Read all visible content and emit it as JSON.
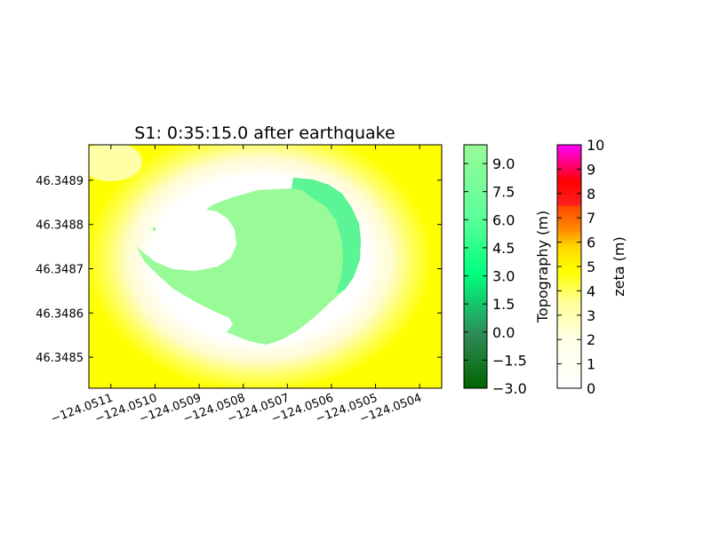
{
  "chart_data": [
    {
      "type": "heatmap",
      "title": "S1: 0:35:15.0 after earthquake",
      "xlabel": "",
      "ylabel": "",
      "xlim": [
        -124.05115,
        -124.05035
      ],
      "ylim": [
        46.34843,
        46.34898
      ],
      "x_ticks": [
        -124.0511,
        -124.051,
        -124.0509,
        -124.0508,
        -124.0507,
        -124.0506,
        -124.0505,
        -124.0504
      ],
      "x_tick_labels": [
        "−124.0511",
        "−124.0510",
        "−124.0509",
        "−124.0508",
        "−124.0507",
        "−124.0506",
        "−124.0505",
        "−124.0504"
      ],
      "y_ticks": [
        46.3485,
        46.3486,
        46.3487,
        46.3488,
        46.3489
      ],
      "y_tick_labels": [
        "46.3485",
        "46.3486",
        "46.3487",
        "46.3488",
        "46.3489"
      ],
      "grid": false,
      "fields": [
        {
          "name": "zeta (m)",
          "description": "water surface elevation, yellow (~4.5) outside ring fading to white (0) near island"
        },
        {
          "name": "Topography (m)",
          "description": "dry land island shown in light green (~9+)"
        }
      ]
    },
    {
      "type": "colorbar",
      "label": "Topography (m)",
      "range": [
        -3.0,
        10.0
      ],
      "ticks": [
        -3.0,
        -1.5,
        0.0,
        1.5,
        3.0,
        4.5,
        6.0,
        7.5,
        9.0
      ],
      "tick_labels": [
        "−3.0",
        "−1.5",
        "0.0",
        "1.5",
        "3.0",
        "4.5",
        "6.0",
        "7.5",
        "9.0"
      ],
      "colors": [
        "#006400",
        "#2e8b57",
        "#00ff7f",
        "#7fff9f",
        "#98fb98"
      ]
    },
    {
      "type": "colorbar",
      "label": "zeta (m)",
      "range": [
        0,
        10
      ],
      "ticks": [
        0,
        1,
        2,
        3,
        4,
        5,
        6,
        7,
        8,
        9,
        10
      ],
      "tick_labels": [
        "0",
        "1",
        "2",
        "3",
        "4",
        "5",
        "6",
        "7",
        "8",
        "9",
        "10"
      ],
      "colors": [
        "#ffffff",
        "#ffff00",
        "#ff4500",
        "#ff0000",
        "#ff00ff"
      ]
    }
  ]
}
